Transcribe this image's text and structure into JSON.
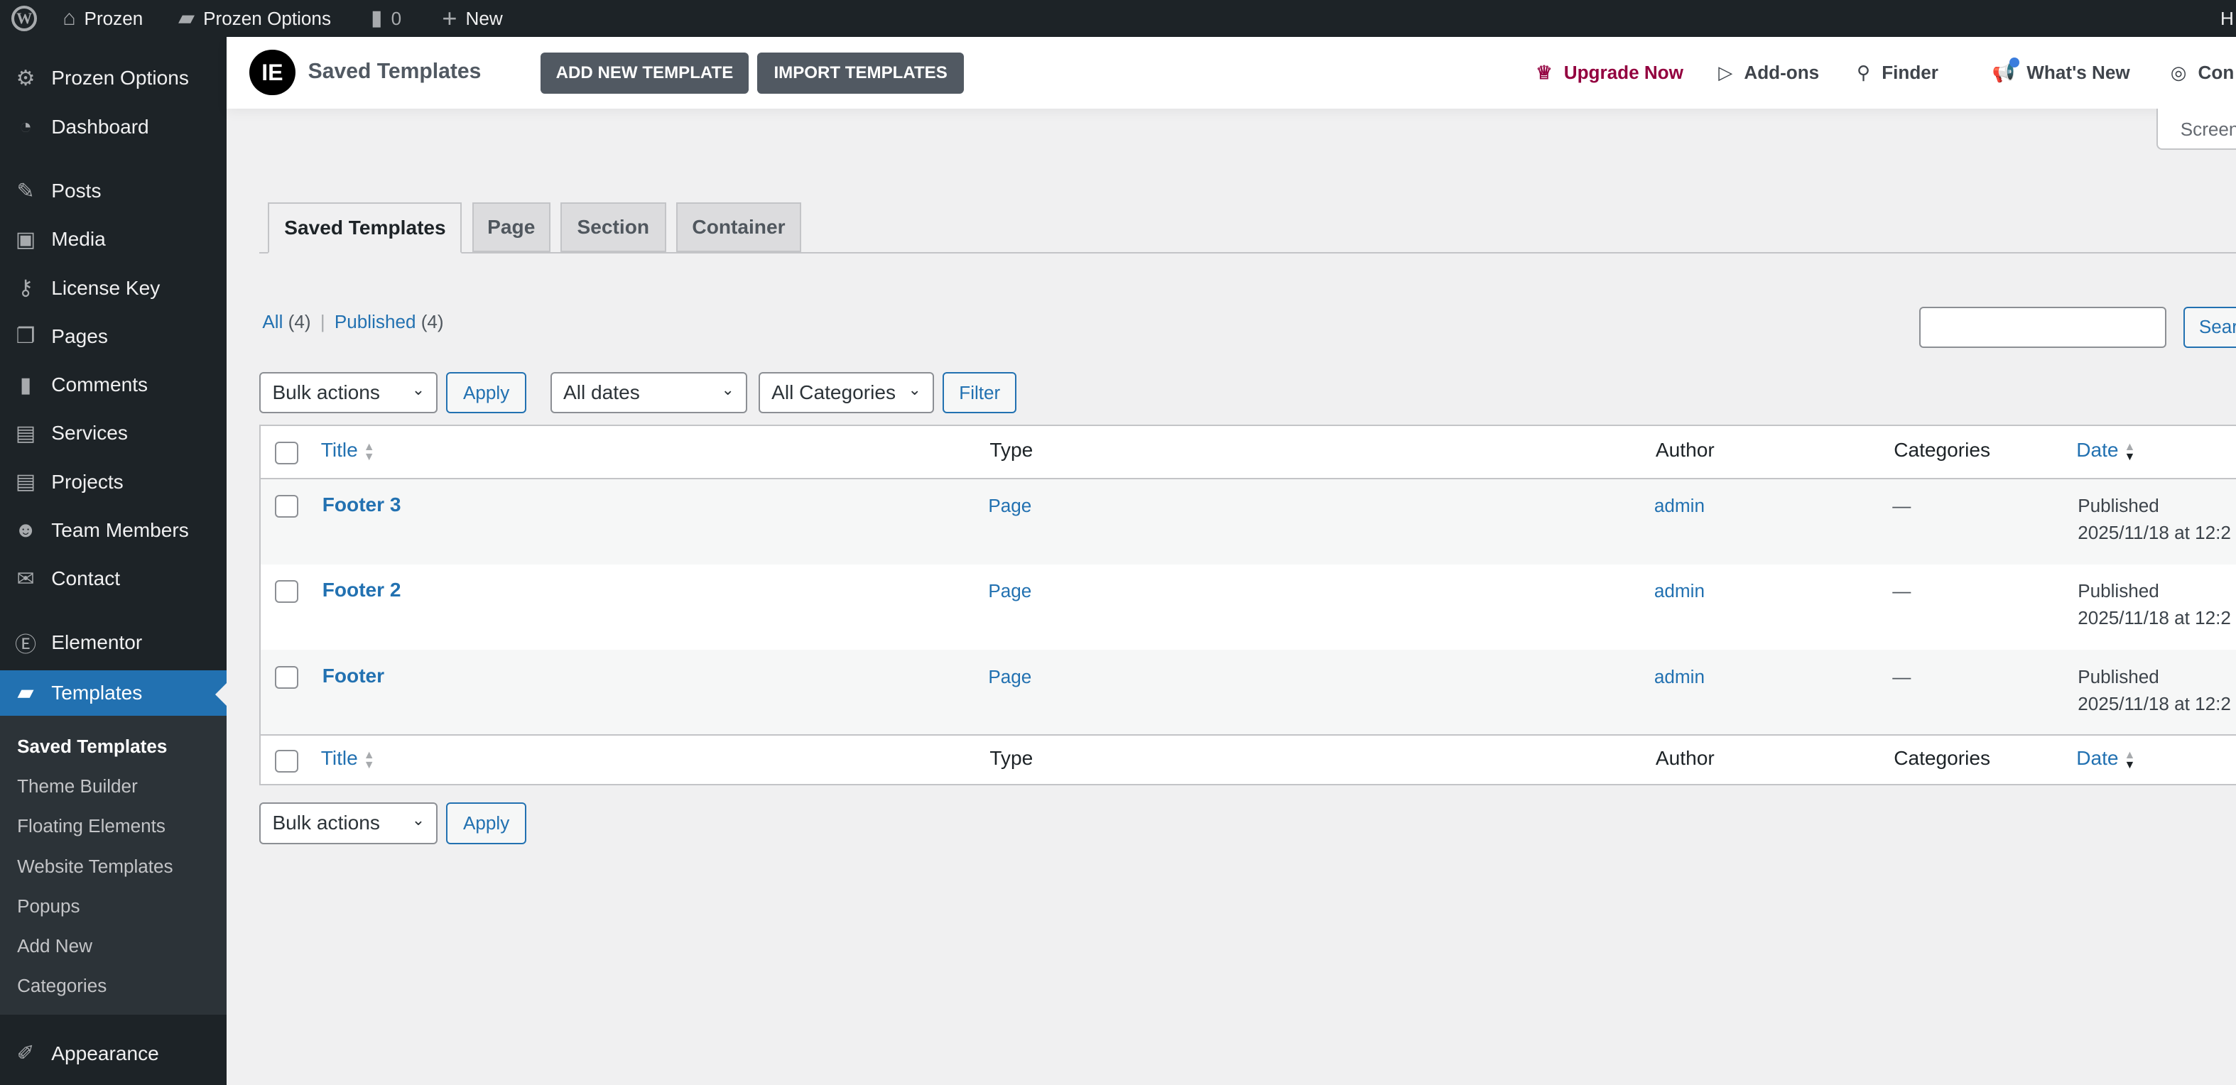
{
  "admin_bar": {
    "site": "Prozen",
    "options": "Prozen Options",
    "comments_count": "0",
    "new": "New",
    "right_partial": "H"
  },
  "sidebar": {
    "items": [
      {
        "label": "Prozen Options",
        "icon": "gear-icon"
      },
      {
        "label": "Dashboard",
        "icon": "dashboard-icon"
      },
      {
        "label": "Posts",
        "icon": "pin-icon"
      },
      {
        "label": "Media",
        "icon": "media-icon"
      },
      {
        "label": "License Key",
        "icon": "key-icon"
      },
      {
        "label": "Pages",
        "icon": "pages-icon"
      },
      {
        "label": "Comments",
        "icon": "comment-icon"
      },
      {
        "label": "Services",
        "icon": "document-icon"
      },
      {
        "label": "Projects",
        "icon": "document-icon"
      },
      {
        "label": "Team Members",
        "icon": "team-icon"
      },
      {
        "label": "Contact",
        "icon": "mail-icon"
      },
      {
        "label": "Elementor",
        "icon": "elementor-icon"
      },
      {
        "label": "Templates",
        "icon": "folder-open-icon"
      },
      {
        "label": "Appearance",
        "icon": "brush-icon"
      }
    ],
    "submenu": [
      "Saved Templates",
      "Theme Builder",
      "Floating Elements",
      "Website Templates",
      "Popups",
      "Add New",
      "Categories"
    ]
  },
  "header": {
    "title": "Saved Templates",
    "add_new": "ADD NEW TEMPLATE",
    "import": "IMPORT TEMPLATES",
    "upgrade": "Upgrade Now",
    "addons": "Add-ons",
    "finder": "Finder",
    "whats_new": "What's New",
    "connect": "Con",
    "screen_options": "Screen",
    "accent": "#93003f"
  },
  "tabs": [
    "Saved Templates",
    "Page",
    "Section",
    "Container"
  ],
  "views": {
    "all": "All",
    "all_count": "(4)",
    "sep": "|",
    "published": "Published",
    "published_count": "(4)"
  },
  "search": {
    "value": "",
    "button": "Sear"
  },
  "filters": {
    "bulk": "Bulk actions",
    "apply": "Apply",
    "dates": "All dates",
    "categories": "All Categories",
    "filter": "Filter"
  },
  "table": {
    "columns": [
      "Title",
      "Type",
      "Author",
      "Categories",
      "Date"
    ],
    "rows": [
      {
        "title": "Footer 3",
        "type": "Page",
        "author": "admin",
        "categories": "—",
        "status": "Published",
        "date": "2025/11/18 at 12:2"
      },
      {
        "title": "Footer 2",
        "type": "Page",
        "author": "admin",
        "categories": "—",
        "status": "Published",
        "date": "2025/11/18 at 12:2"
      },
      {
        "title": "Footer",
        "type": "Page",
        "author": "admin",
        "categories": "—",
        "status": "Published",
        "date": "2025/11/18 at 12:2"
      }
    ]
  }
}
